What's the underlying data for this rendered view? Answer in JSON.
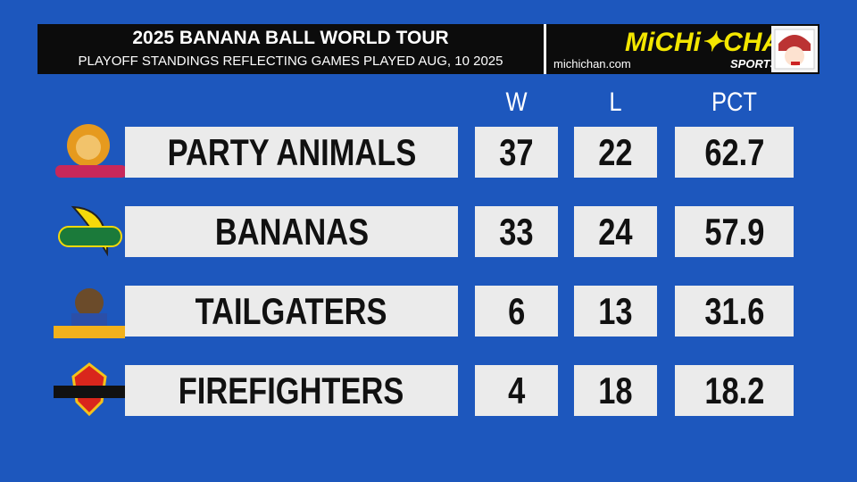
{
  "header": {
    "title": "2025 BANANA BALL WORLD TOUR",
    "subtitle": "PLAYOFF STANDINGS REFLECTING GAMES PLAYED AUG, 10 2025"
  },
  "brand": {
    "name": "MiCHi✦CHAN",
    "tagline": "SPORTS",
    "url": "michichan.com"
  },
  "table": {
    "columns": [
      "W",
      "L",
      "PCT"
    ],
    "rows": [
      [
        "PARTY ANIMALS",
        37,
        22,
        62.7
      ],
      [
        "BANANAS",
        33,
        24,
        57.9
      ],
      [
        "TAILGATERS",
        6,
        13,
        31.6
      ],
      [
        "FIREFIGHTERS",
        4,
        18,
        18.2
      ]
    ]
  }
}
